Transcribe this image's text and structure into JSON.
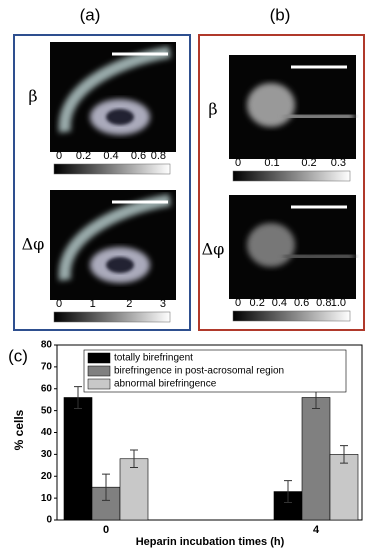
{
  "panels": [
    {
      "label": "(a)",
      "images": [
        {
          "symbol": "β",
          "colorbar_ticks": [
            "0",
            "0.2",
            "0.4",
            "0.6",
            "0.8"
          ]
        },
        {
          "symbol": "Δφ",
          "colorbar_ticks": [
            "0",
            "1",
            "2",
            "3"
          ]
        }
      ]
    },
    {
      "label": "(b)",
      "images": [
        {
          "symbol": "β",
          "colorbar_ticks": [
            "0",
            "0.1",
            "0.2",
            "0.3"
          ]
        },
        {
          "symbol": "Δφ",
          "colorbar_ticks": [
            "0",
            "0.2",
            "0.4",
            "0.6",
            "0.8",
            "1.0"
          ]
        }
      ]
    }
  ],
  "chart_data": {
    "type": "bar",
    "label": "(c)",
    "x_label": "Heparin incubation times (h)",
    "y_label": "% cells",
    "categories": [
      "0",
      "4"
    ],
    "series": [
      {
        "name": "totally birefringent",
        "color": "#000000",
        "values": [
          56,
          13
        ],
        "errors": [
          5,
          5
        ]
      },
      {
        "name": "birefringence in post-acrosomal region",
        "color": "#808080",
        "values": [
          15,
          56
        ],
        "errors": [
          6,
          5
        ]
      },
      {
        "name": "abnormal birefringence",
        "color": "#c8c8c8",
        "values": [
          28,
          30
        ],
        "errors": [
          4,
          4
        ]
      }
    ],
    "ylim": [
      0,
      80
    ],
    "yticks": [
      0,
      10,
      20,
      30,
      40,
      50,
      60,
      70,
      80
    ]
  }
}
